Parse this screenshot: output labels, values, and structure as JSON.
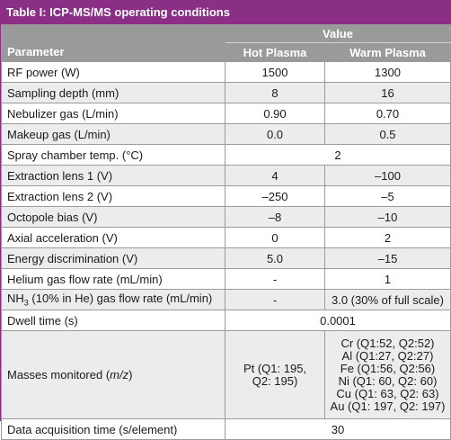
{
  "table": {
    "title": "Table I: ICP-MS/MS operating conditions",
    "header": {
      "parameter": "Parameter",
      "value": "Value",
      "hot": "Hot Plasma",
      "warm": "Warm Plasma"
    },
    "rows": [
      {
        "param": "RF power (W)",
        "hot": "1500",
        "warm": "1300"
      },
      {
        "param": "Sampling depth (mm)",
        "hot": "8",
        "warm": "16"
      },
      {
        "param": "Nebulizer gas (L/min)",
        "hot": "0.90",
        "warm": "0.70"
      },
      {
        "param": "Makeup gas (L/min)",
        "hot": "0.0",
        "warm": "0.5"
      },
      {
        "param": "Spray chamber temp. (°C)",
        "merged": "2"
      },
      {
        "param": "Extraction lens 1 (V)",
        "hot": "4",
        "warm": "–100"
      },
      {
        "param": "Extraction lens 2 (V)",
        "hot": "–250",
        "warm": "–5"
      },
      {
        "param": "Octopole bias (V)",
        "hot": "–8",
        "warm": "–10"
      },
      {
        "param": "Axial acceleration (V)",
        "hot": "0",
        "warm": "2"
      },
      {
        "param": "Energy discrimination (V)",
        "hot": "5.0",
        "warm": "–15"
      },
      {
        "param": "Helium gas flow rate (mL/min)",
        "hot": "-",
        "warm": "1"
      },
      {
        "param_pre": "NH",
        "param_sub": "3",
        "param_post": " (10% in He) gas flow rate (mL/min)",
        "hot": "-",
        "warm": "3.0 (30% of full scale)"
      },
      {
        "param": "Dwell time (s)",
        "merged": "0.0001"
      },
      {
        "param_pre": "Masses monitored (",
        "param_em": "m/z",
        "param_post": ")",
        "hot_lines": [
          "Pt (Q1: 195,",
          "Q2: 195)"
        ],
        "warm_lines": [
          "Cr (Q1:52, Q2:52)",
          "Al (Q1:27, Q2:27)",
          "Fe (Q1:56, Q2:56)",
          "Ni (Q1: 60, Q2: 60)",
          "Cu (Q1: 63, Q2: 63)",
          "Au (Q1: 197, Q2: 197)"
        ]
      },
      {
        "param": "Data acquisition time (s/element)",
        "merged": "30"
      }
    ]
  }
}
